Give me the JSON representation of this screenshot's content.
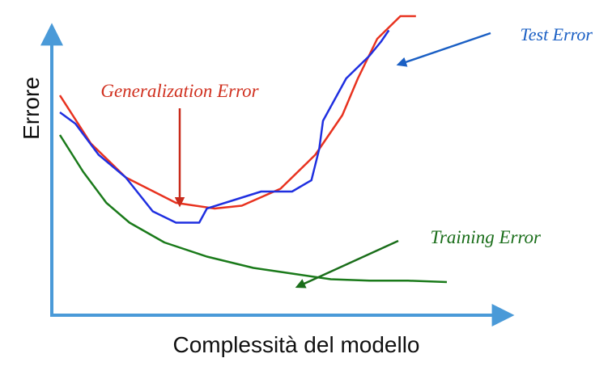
{
  "chart_data": {
    "type": "line",
    "xlabel": "Complessità del modello",
    "ylabel": "Errore",
    "xlim": [
      0,
      100
    ],
    "ylim": [
      0,
      100
    ],
    "grid": false,
    "legend": "none",
    "series": [
      {
        "name": "Generalization Error",
        "color": "#e8321f",
        "x": [
          0,
          8,
          17,
          30,
          40,
          47,
          57,
          66,
          73,
          77,
          82,
          88,
          92
        ],
        "y": [
          72,
          55,
          43,
          34,
          32,
          33,
          39,
          51,
          65,
          78,
          92,
          100,
          100
        ]
      },
      {
        "name": "Test Error",
        "color": "#1f2fe0",
        "x": [
          0,
          4,
          10,
          17,
          24,
          30,
          36,
          38,
          45,
          52,
          60,
          65,
          67,
          68,
          74,
          80,
          83,
          85
        ],
        "y": [
          66,
          62,
          51,
          43,
          31,
          27,
          27,
          32,
          35,
          38,
          38,
          42,
          53,
          63,
          78,
          86,
          91,
          95
        ]
      },
      {
        "name": "Training Error",
        "color": "#1a7a1a",
        "x": [
          0,
          6,
          12,
          18,
          27,
          38,
          50,
          60,
          70,
          80,
          90,
          100
        ],
        "y": [
          58,
          45,
          34,
          27,
          20,
          15,
          11,
          9,
          7,
          6.5,
          6.5,
          6
        ]
      }
    ],
    "annotations": [
      {
        "text": "Generalization Error",
        "color": "#d0301f"
      },
      {
        "text": "Test Error",
        "color": "#1a5fc4"
      },
      {
        "text": "Training Error",
        "color": "#1a6e1a"
      }
    ],
    "axis_color": "#4a9ad8"
  }
}
